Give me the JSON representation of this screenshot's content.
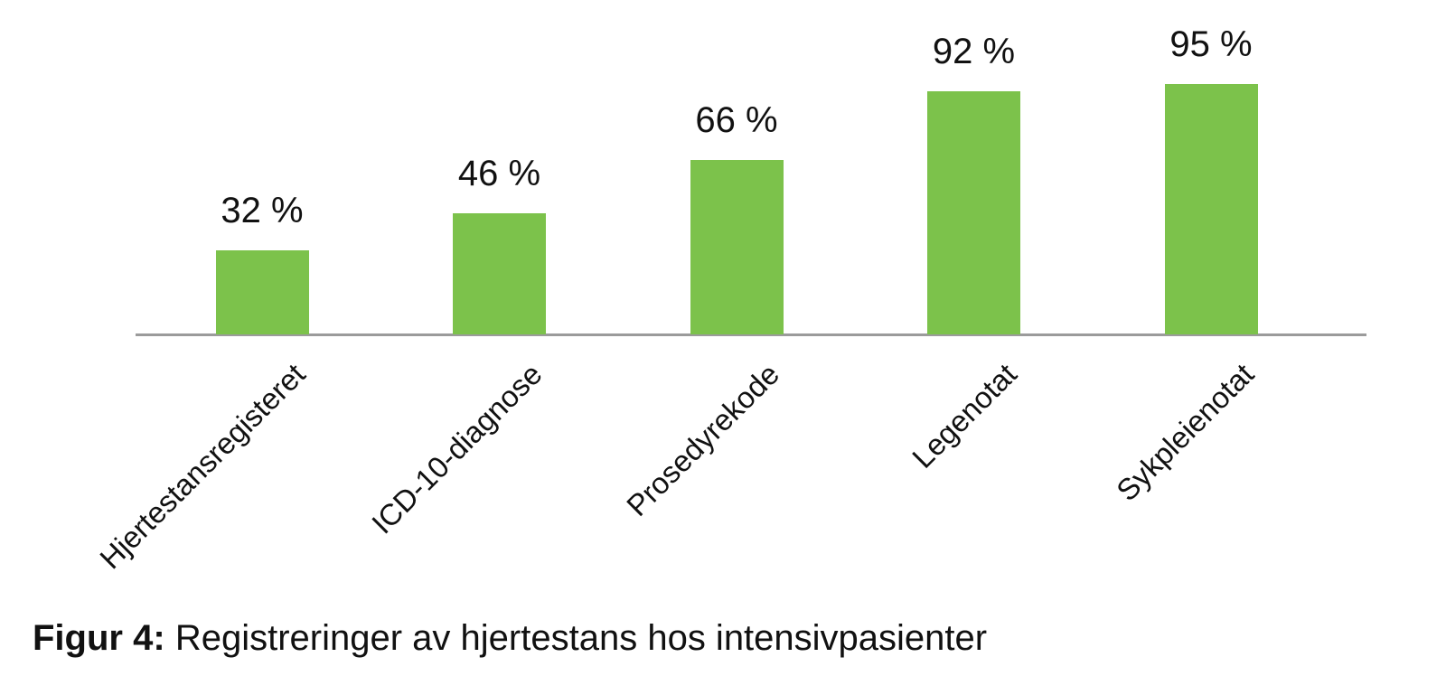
{
  "figure": {
    "caption_prefix": "Figur 4:",
    "caption_text": "Registreringer av hjertestans hos intensivpasienter"
  },
  "chart_data": {
    "type": "bar",
    "categories": [
      "Hjertestansregisteret",
      "ICD-10-diagnose",
      "Prosedyrekode",
      "Legenotat",
      "Sykpleienotat"
    ],
    "values": [
      32,
      46,
      66,
      92,
      95
    ],
    "value_labels": [
      "32 %",
      "46 %",
      "66 %",
      "92 %",
      "95 %"
    ],
    "title": "",
    "xlabel": "",
    "ylabel": "",
    "ylim": [
      0,
      100
    ],
    "grid": false,
    "legend": false,
    "x_label_rotation_deg": 45,
    "bar_color": "#7cc24b",
    "axis_color": "#9b9b9b",
    "text_color": "#111111"
  }
}
